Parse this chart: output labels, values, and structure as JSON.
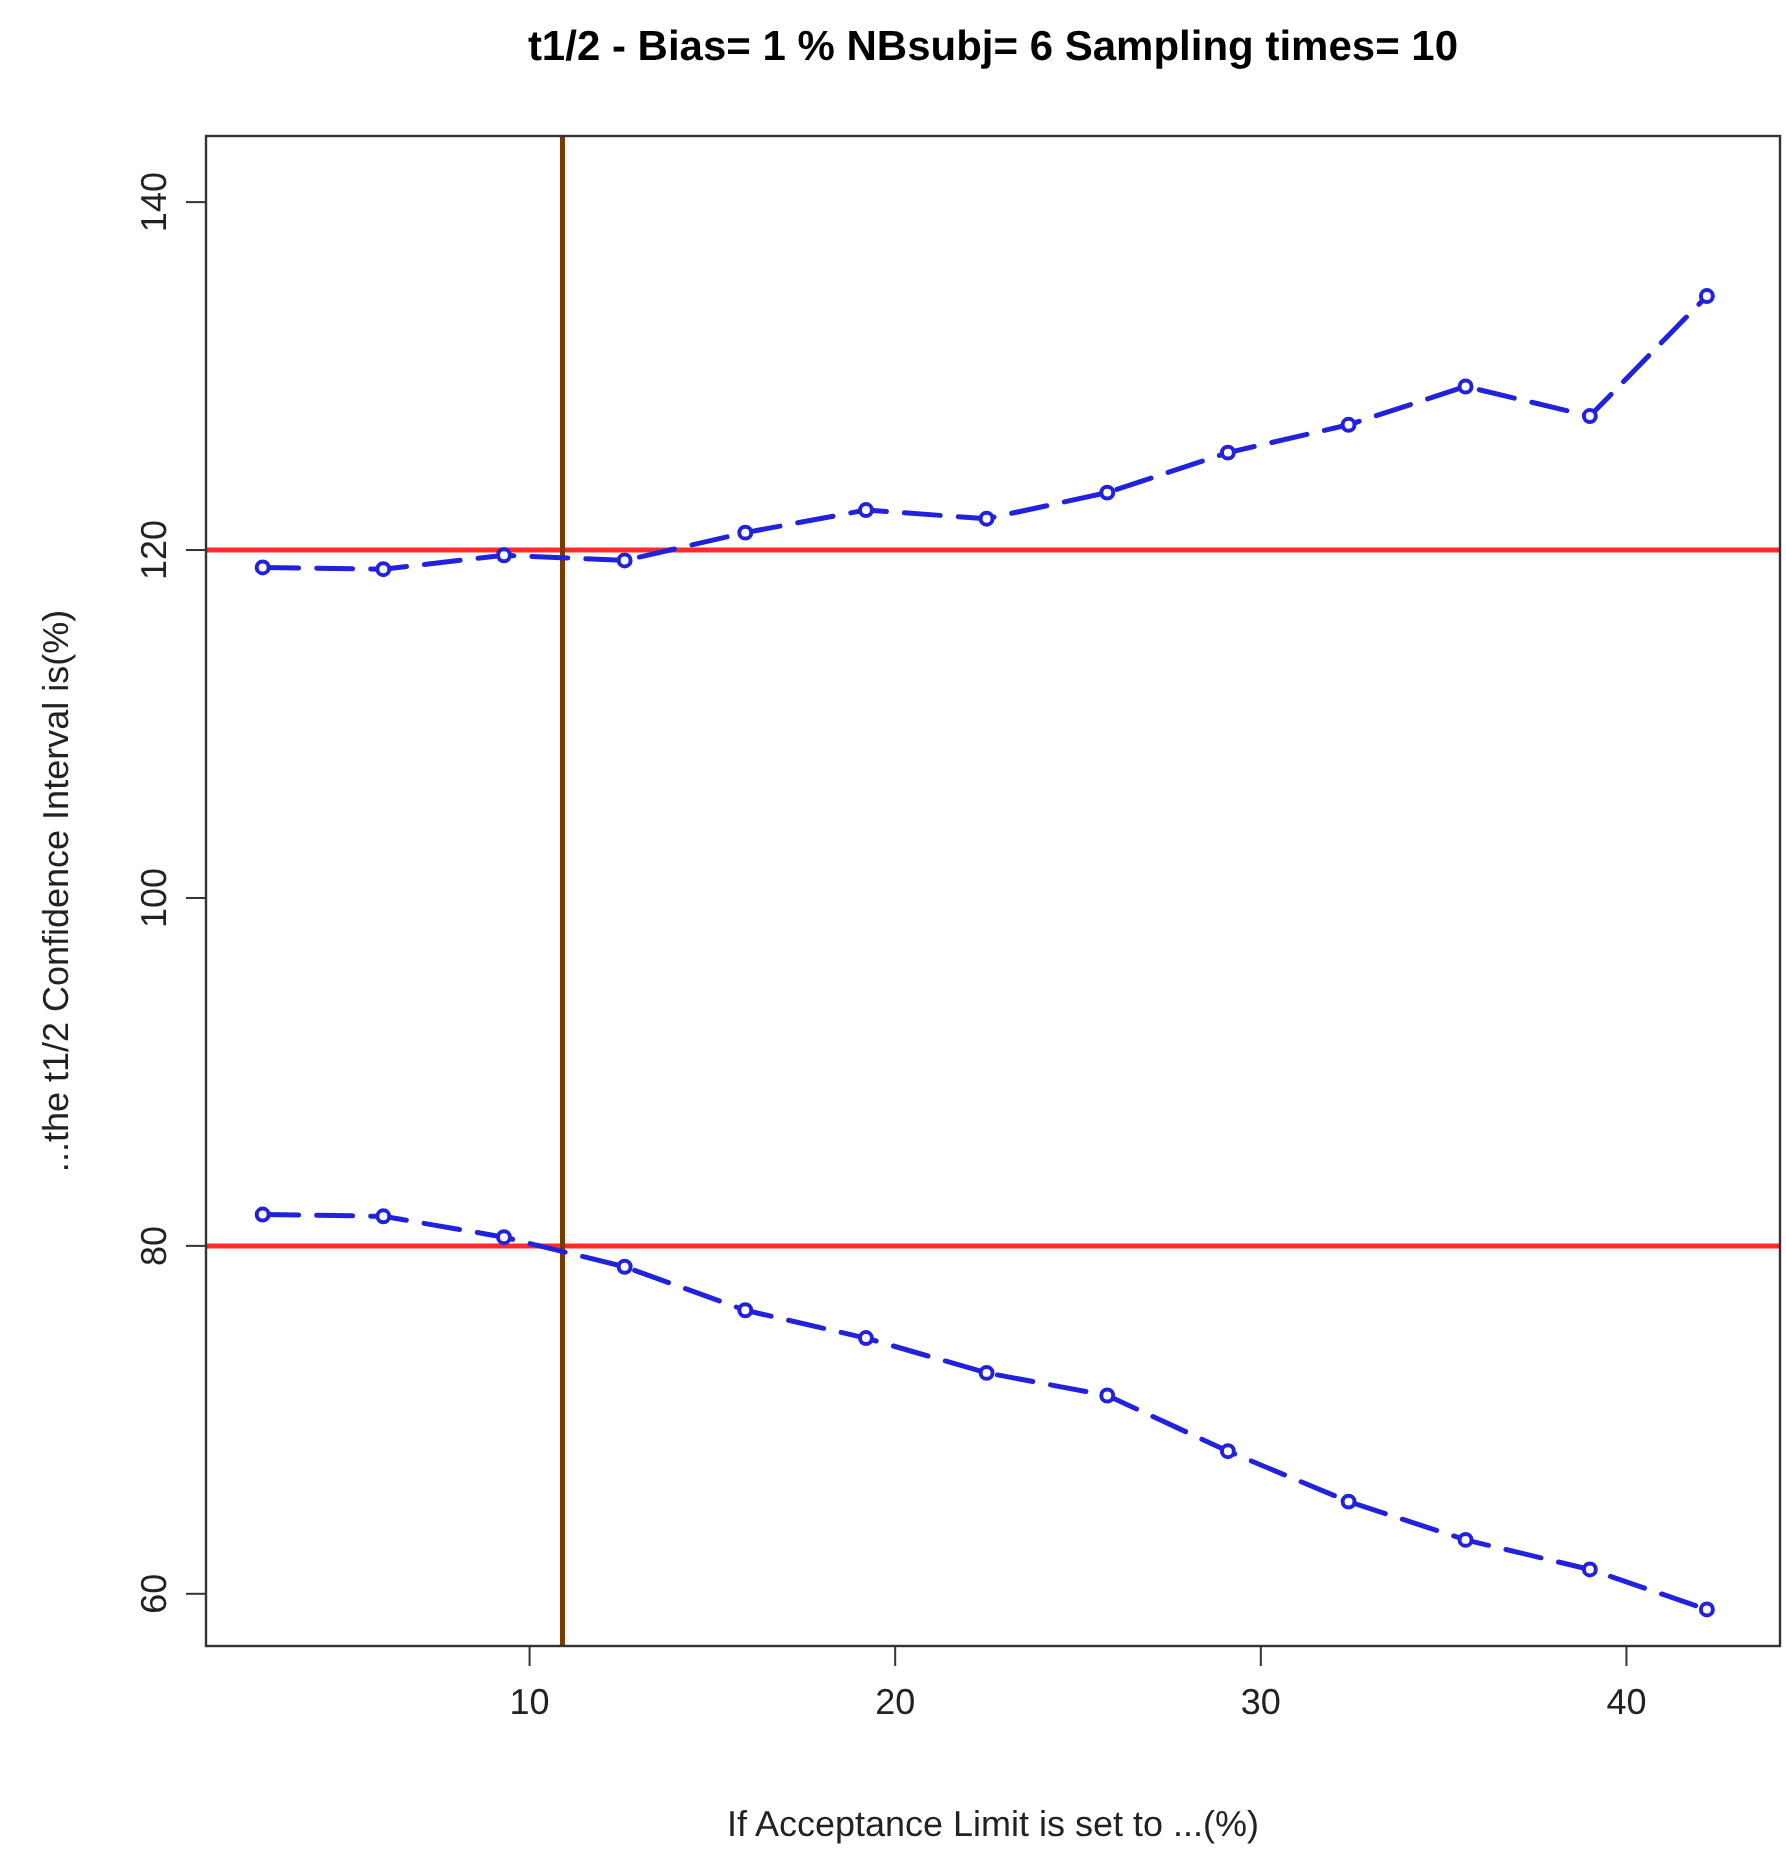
{
  "chart_data": {
    "type": "line",
    "title": "t1/2 - Bias= 1 %  NBsubj= 6  Sampling times= 10",
    "xlabel": "If Acceptance Limit is set to ...(%)",
    "ylabel": "...the t1/2 Confidence Interval is(%)",
    "x": [
      2.7,
      6.0,
      9.3,
      12.6,
      15.9,
      19.2,
      22.5,
      25.8,
      29.1,
      32.4,
      35.6,
      39.0,
      42.2
    ],
    "series": [
      {
        "color": "#2222dd",
        "values": [
          119.0,
          118.9,
          119.7,
          119.4,
          121.0,
          122.3,
          121.8,
          123.3,
          125.6,
          127.2,
          129.4,
          127.7,
          134.6
        ]
      },
      {
        "color": "#2222dd",
        "values": [
          81.8,
          81.7,
          80.5,
          78.8,
          76.3,
          74.7,
          72.7,
          71.4,
          68.2,
          65.3,
          63.1,
          61.4,
          59.1
        ]
      }
    ],
    "xlim": [
      1.15,
      44.2
    ],
    "xticks": [
      10,
      20,
      30,
      40
    ],
    "ylim": [
      57,
      143.8
    ],
    "yticks": [
      60,
      80,
      100,
      120,
      140
    ],
    "ref_lines": [
      {
        "axis": "y",
        "value": 120,
        "color": "#ff2a2a"
      },
      {
        "axis": "y",
        "value": 80,
        "color": "#ff2a2a"
      },
      {
        "axis": "x",
        "value": 10.9,
        "color": "#7a3b00"
      }
    ],
    "grid": false,
    "marker": "circle",
    "line_style": "dashed"
  }
}
